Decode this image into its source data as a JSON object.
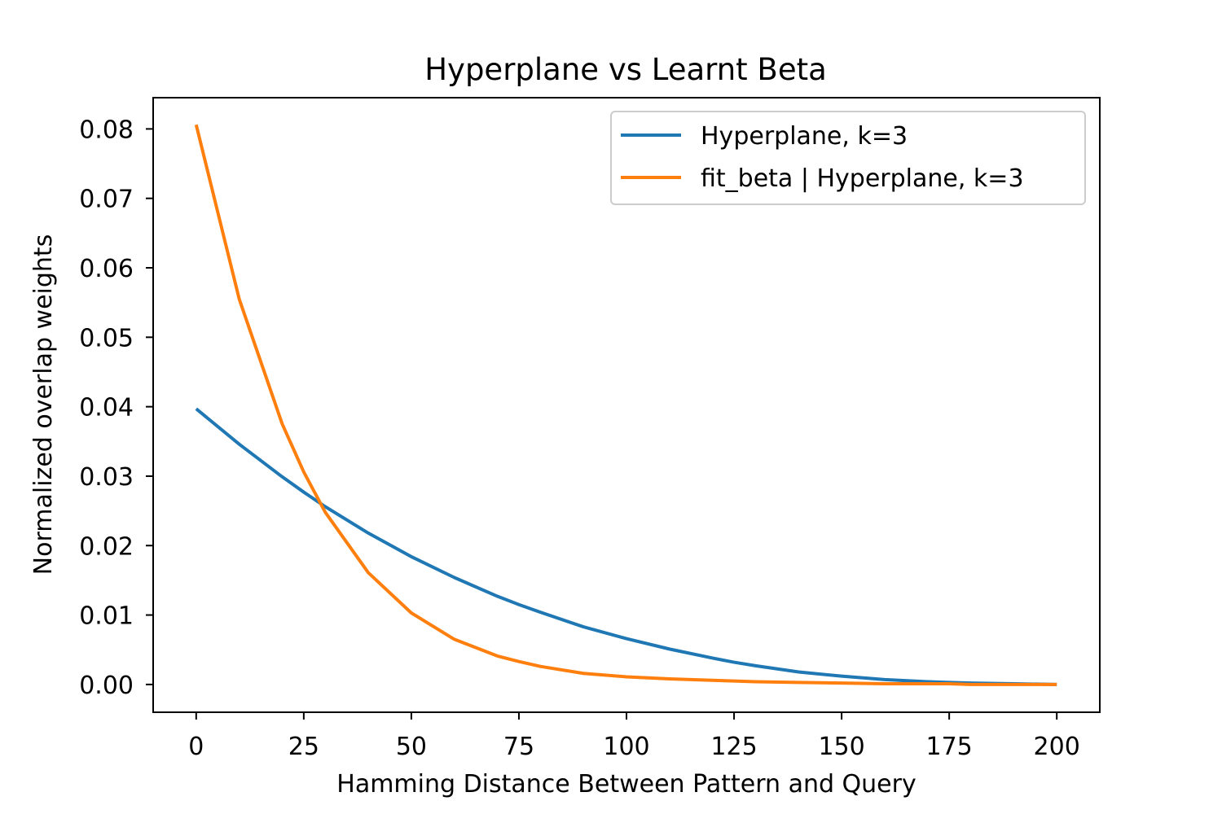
{
  "chart_data": {
    "type": "line",
    "title": "Hyperplane vs Learnt Beta",
    "xlabel": "Hamming Distance Between Pattern and Query",
    "ylabel": "Normalized overlap weights",
    "xlim": [
      -10,
      210
    ],
    "ylim": [
      -0.004,
      0.0845
    ],
    "xticks": [
      0,
      25,
      50,
      75,
      100,
      125,
      150,
      175,
      200
    ],
    "xtick_labels": [
      "0",
      "25",
      "50",
      "75",
      "100",
      "125",
      "150",
      "175",
      "200"
    ],
    "yticks": [
      0.0,
      0.01,
      0.02,
      0.03,
      0.04,
      0.05,
      0.06,
      0.07,
      0.08
    ],
    "ytick_labels": [
      "0.00",
      "0.01",
      "0.02",
      "0.03",
      "0.04",
      "0.05",
      "0.06",
      "0.07",
      "0.08"
    ],
    "grid": false,
    "legend_position": "top-right",
    "x": [
      0,
      10,
      20,
      25,
      30,
      40,
      50,
      60,
      70,
      75,
      80,
      90,
      100,
      110,
      120,
      125,
      130,
      140,
      150,
      160,
      170,
      175,
      180,
      190,
      200
    ],
    "series": [
      {
        "name": "Hyperplane, k=3",
        "color": "#1f77b4",
        "values": [
          0.0397,
          0.0346,
          0.0299,
          0.0277,
          0.0256,
          0.0218,
          0.0184,
          0.0154,
          0.0127,
          0.0115,
          0.0104,
          0.0083,
          0.0066,
          0.0051,
          0.0038,
          0.0032,
          0.0027,
          0.0018,
          0.0012,
          0.0007,
          0.0004,
          0.0003,
          0.0002,
          0.0001,
          0.0
        ]
      },
      {
        "name": "fit_beta | Hyperplane, k=3",
        "color": "#ff7f0e",
        "values": [
          0.0806,
          0.0555,
          0.0375,
          0.0306,
          0.0248,
          0.0161,
          0.0103,
          0.0065,
          0.0041,
          0.0033,
          0.0026,
          0.0016,
          0.0011,
          0.0008,
          0.0006,
          0.0005,
          0.0004,
          0.0003,
          0.0002,
          0.0001,
          0.0001,
          0.0001,
          0.0,
          0.0,
          0.0
        ]
      }
    ]
  }
}
